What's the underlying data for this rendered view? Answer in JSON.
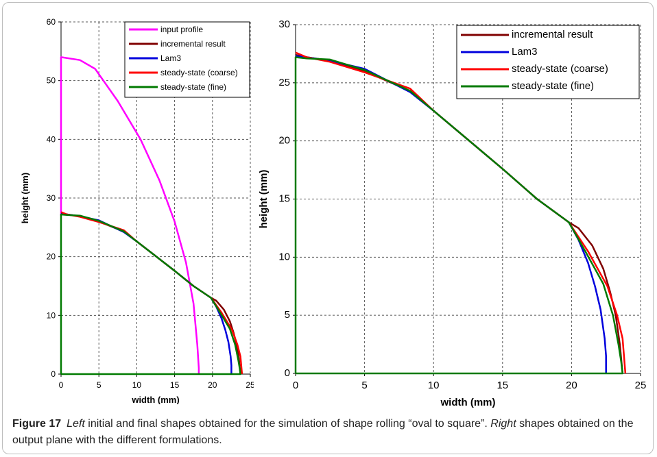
{
  "chart_data": [
    {
      "type": "line",
      "xlabel": "width (mm)",
      "ylabel": "height (mm)",
      "xlim": [
        0,
        25
      ],
      "ylim": [
        0,
        60
      ],
      "xticks": [
        0,
        5,
        10,
        15,
        20,
        25
      ],
      "yticks": [
        0,
        10,
        20,
        30,
        40,
        50,
        60
      ],
      "grid": true,
      "legend": "top-right",
      "series": [
        {
          "name": "input profile",
          "color": "#ff00ff",
          "x": [
            0,
            0,
            2.5,
            4.5,
            7.5,
            10.5,
            13,
            15,
            16.5,
            17.5,
            18,
            18.2,
            18.2
          ],
          "y": [
            27,
            54,
            53.5,
            52,
            46.5,
            40,
            33,
            26,
            19,
            12,
            5,
            1,
            0
          ]
        },
        {
          "name": "incremental result",
          "color": "#800000",
          "x": [
            0,
            0.8,
            2.5,
            5,
            8.3,
            10,
            12.5,
            15,
            17.5,
            19.8,
            20.5,
            21.5,
            22.3,
            22.8,
            23.2,
            23.5,
            23.7
          ],
          "y": [
            27.4,
            27.2,
            26.9,
            26,
            24.3,
            22.6,
            20.1,
            17.6,
            15,
            13,
            12.5,
            11,
            9,
            7,
            5,
            2.5,
            0
          ]
        },
        {
          "name": "Lam3",
          "color": "#0000dd",
          "x": [
            0,
            0.8,
            2.5,
            5,
            8.3,
            10,
            12.5,
            15,
            17.5,
            19.8,
            20.5,
            21.2,
            21.7,
            22.1,
            22.4,
            22.5,
            22.5
          ],
          "y": [
            27.3,
            27.2,
            26.9,
            26.2,
            24.2,
            22.6,
            20.1,
            17.6,
            15,
            13,
            11.5,
            9.5,
            7.5,
            5.5,
            3,
            1.5,
            0
          ]
        },
        {
          "name": "steady-state (coarse)",
          "color": "#ff0000",
          "x": [
            0,
            0.8,
            2.5,
            5,
            8.3,
            10,
            12.5,
            15,
            17.5,
            19.8,
            21.2,
            22.6,
            23.3,
            23.7,
            23.9
          ],
          "y": [
            27.6,
            27.2,
            26.8,
            25.9,
            24.5,
            22.6,
            20.1,
            17.6,
            15,
            13,
            10.5,
            7.5,
            5,
            3,
            0
          ]
        },
        {
          "name": "steady-state (fine)",
          "color": "#007a00",
          "x": [
            0,
            0,
            0.8,
            2.5,
            5,
            8.3,
            10,
            12.5,
            15,
            17.5,
            19.8,
            21,
            22.3,
            23,
            23.4,
            23.6,
            23.7,
            0
          ],
          "y": [
            0,
            27.2,
            27.1,
            27,
            26.1,
            24.3,
            22.6,
            20.1,
            17.6,
            15,
            13,
            10.5,
            7.7,
            5,
            2.5,
            1,
            0,
            0
          ]
        }
      ]
    },
    {
      "type": "line",
      "xlabel": "width (mm)",
      "ylabel": "height (mm)",
      "xlim": [
        0,
        25
      ],
      "ylim": [
        0,
        30
      ],
      "xticks": [
        0,
        5,
        10,
        15,
        20,
        25
      ],
      "yticks": [
        0,
        5,
        10,
        15,
        20,
        25,
        30
      ],
      "grid": true,
      "legend": "top-right",
      "series": [
        {
          "name": "incremental result",
          "color": "#800000",
          "x": [
            0,
            0.8,
            2.5,
            5,
            8.3,
            10,
            12.5,
            15,
            17.5,
            19.8,
            20.5,
            21.5,
            22.3,
            22.8,
            23.2,
            23.5,
            23.7
          ],
          "y": [
            27.4,
            27.2,
            26.9,
            26,
            24.3,
            22.6,
            20.1,
            17.6,
            15,
            13,
            12.5,
            11,
            9,
            7,
            5,
            2.5,
            0
          ]
        },
        {
          "name": "Lam3",
          "color": "#0000dd",
          "x": [
            0,
            0.8,
            2.5,
            5,
            8.3,
            10,
            12.5,
            15,
            17.5,
            19.8,
            20.5,
            21.2,
            21.7,
            22.1,
            22.4,
            22.5,
            22.5
          ],
          "y": [
            27.3,
            27.2,
            26.9,
            26.2,
            24.2,
            22.6,
            20.1,
            17.6,
            15,
            13,
            11.5,
            9.5,
            7.5,
            5.5,
            3,
            1.5,
            0
          ]
        },
        {
          "name": "steady-state (coarse)",
          "color": "#ff0000",
          "x": [
            0,
            0.8,
            2.5,
            5,
            8.3,
            10,
            12.5,
            15,
            17.5,
            19.8,
            21.2,
            22.6,
            23.3,
            23.7,
            23.9
          ],
          "y": [
            27.6,
            27.2,
            26.8,
            25.9,
            24.5,
            22.6,
            20.1,
            17.6,
            15,
            13,
            10.5,
            7.5,
            5,
            3,
            0
          ]
        },
        {
          "name": "steady-state (fine)",
          "color": "#007a00",
          "x": [
            0,
            0,
            0.8,
            2.5,
            5,
            8.3,
            10,
            12.5,
            15,
            17.5,
            19.8,
            21,
            22.3,
            23,
            23.4,
            23.6,
            23.7,
            0
          ],
          "y": [
            0,
            27.2,
            27.1,
            27,
            26.1,
            24.3,
            22.6,
            20.1,
            17.6,
            15,
            13,
            10.5,
            7.7,
            5,
            2.5,
            1,
            0,
            0
          ]
        }
      ]
    }
  ],
  "caption": {
    "figure_label": "Figure 17",
    "left_word": "Left",
    "left_text": " initial and final shapes obtained for the simulation of shape rolling “oval to square”. ",
    "right_word": "Right",
    "right_text": " shapes obtained on the output plane with the different formulations."
  }
}
